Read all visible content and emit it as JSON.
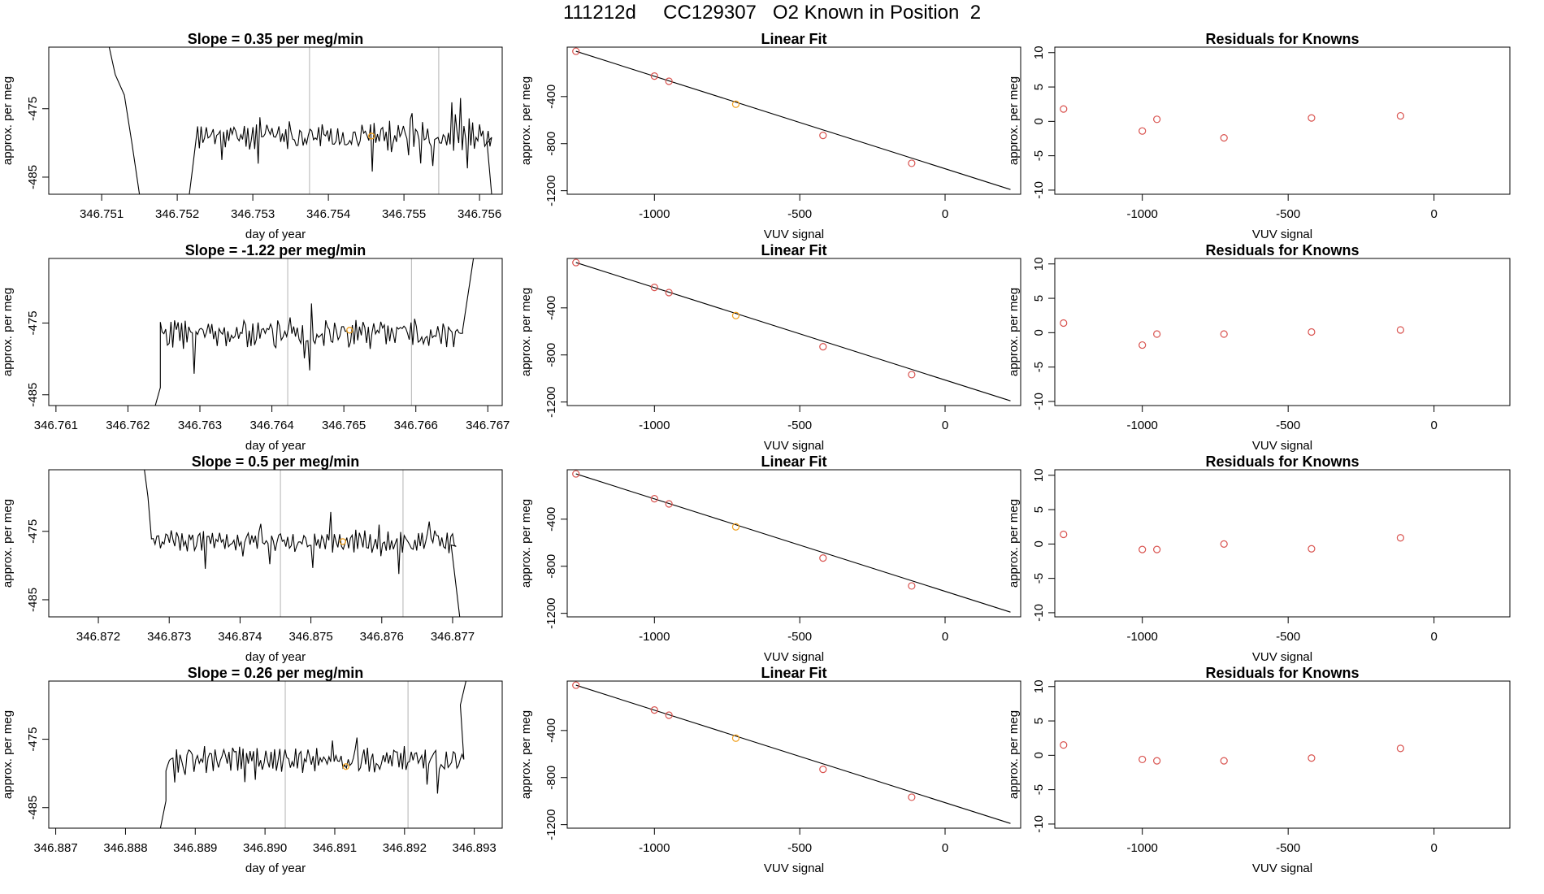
{
  "page_title": "111212d     CC129307   O2 Known in Position  2",
  "colors": {
    "trace": "#000000",
    "points": "#d9534f",
    "current_point": "#f0a020",
    "refline": "#c0c0c0",
    "fitline": "#000000"
  },
  "chart_data": [
    {
      "type": "line",
      "row": 1,
      "panel": "time-series",
      "title": "Slope =  0.35  per meg/min",
      "xlabel": "day of year",
      "ylabel": "approx. per meg",
      "xlim": [
        346.7503,
        346.7563
      ],
      "ylim": [
        -487.5,
        -466.0
      ],
      "xticks": [
        "346.751",
        "346.752",
        "346.753",
        "346.754",
        "346.755",
        "346.756"
      ],
      "xtick_values": [
        346.751,
        346.752,
        346.753,
        346.754,
        346.755,
        346.756
      ],
      "yticks": [
        "-475",
        "-485"
      ],
      "ytick_values": [
        -475,
        -485
      ],
      "ref_lines_x": [
        346.75375,
        346.75546
      ],
      "current_point": {
        "x": 346.75457,
        "y": -479.0
      },
      "series_x_start": 346.75227,
      "series_x_end": 346.75616,
      "seed": 11,
      "baseline": -479.0,
      "amplitude": 3.2,
      "edge_left": [
        [
          346.7511,
          -466.0
        ],
        [
          346.75118,
          -470.0
        ],
        [
          346.7513,
          -473.0
        ],
        [
          346.7514,
          -480.0
        ],
        [
          346.7515,
          -487.5
        ]
      ],
      "edge_rise": [
        [
          346.75216,
          -487.5
        ],
        [
          346.7522,
          -484.0
        ]
      ],
      "edge_end": [
        [
          346.7561,
          -480.0
        ],
        [
          346.75616,
          -487.5
        ]
      ]
    },
    {
      "type": "line",
      "row": 2,
      "panel": "time-series",
      "title": "Slope =  -1.22  per meg/min",
      "xlabel": "day of year",
      "ylabel": "approx. per meg",
      "xlim": [
        346.7609,
        346.7672
      ],
      "ylim": [
        -486.5,
        -466.0
      ],
      "xticks": [
        "346.761",
        "346.762",
        "346.763",
        "346.764",
        "346.765",
        "346.766",
        "346.767"
      ],
      "xtick_values": [
        346.761,
        346.762,
        346.763,
        346.764,
        346.765,
        346.766,
        346.767
      ],
      "yticks": [
        "-475",
        "-485"
      ],
      "ytick_values": [
        -475,
        -485
      ],
      "ref_lines_x": [
        346.76422,
        346.76594
      ],
      "current_point": {
        "x": 346.76508,
        "y": -476.0
      },
      "series_x_start": 346.76245,
      "series_x_end": 346.76665,
      "seed": 23,
      "baseline": -476.5,
      "amplitude": 3.4,
      "edge_left": [
        [
          346.76238,
          -486.5
        ],
        [
          346.76245,
          -484.0
        ]
      ],
      "edge_rise": [],
      "edge_end": [
        [
          346.76665,
          -476.0
        ],
        [
          346.7668,
          -466.0
        ]
      ]
    },
    {
      "type": "line",
      "row": 3,
      "panel": "time-series",
      "title": "Slope =  0.5  per meg/min",
      "xlabel": "day of year",
      "ylabel": "approx. per meg",
      "xlim": [
        346.8713,
        346.8777
      ],
      "ylim": [
        -487.5,
        -466.0
      ],
      "xticks": [
        "346.872",
        "346.873",
        "346.874",
        "346.875",
        "346.876",
        "346.877"
      ],
      "xtick_values": [
        346.872,
        346.873,
        346.874,
        346.875,
        346.876,
        346.877
      ],
      "yticks": [
        "-475",
        "-485"
      ],
      "ytick_values": [
        -475,
        -485
      ],
      "ref_lines_x": [
        346.87457,
        346.8763
      ],
      "current_point": {
        "x": 346.87545,
        "y": -476.5
      },
      "series_x_start": 346.87275,
      "series_x_end": 346.87705,
      "seed": 37,
      "baseline": -476.5,
      "amplitude": 2.6,
      "edge_left": [
        [
          346.87265,
          -466.0
        ],
        [
          346.8727,
          -470.0
        ]
      ],
      "edge_rise": [],
      "edge_end": [
        [
          346.87698,
          -477.0
        ],
        [
          346.8771,
          -487.5
        ]
      ]
    },
    {
      "type": "line",
      "row": 4,
      "panel": "time-series",
      "title": "Slope =  0.26  per meg/min",
      "xlabel": "day of year",
      "ylabel": "approx. per meg",
      "xlim": [
        346.8869,
        346.8934
      ],
      "ylim": [
        -488.0,
        -466.5
      ],
      "xticks": [
        "346.887",
        "346.888",
        "346.889",
        "346.890",
        "346.891",
        "346.892",
        "346.893"
      ],
      "xtick_values": [
        346.887,
        346.888,
        346.889,
        346.89,
        346.891,
        346.892,
        346.893
      ],
      "yticks": [
        "-475",
        "-485"
      ],
      "ytick_values": [
        -475,
        -485
      ],
      "ref_lines_x": [
        346.89029,
        346.89205
      ],
      "current_point": {
        "x": 346.89116,
        "y": -479.0
      },
      "series_x_start": 346.88858,
      "series_x_end": 346.89285,
      "seed": 53,
      "baseline": -478.0,
      "amplitude": 3.0,
      "edge_left": [
        [
          346.8885,
          -488.0
        ],
        [
          346.88858,
          -484.0
        ]
      ],
      "edge_rise": [],
      "edge_end": [
        [
          346.8928,
          -470.0
        ],
        [
          346.89288,
          -466.5
        ]
      ]
    },
    {
      "type": "scatter",
      "panel": "linear-fit",
      "rows": [
        1,
        2,
        3,
        4
      ],
      "title": "Linear Fit",
      "xlabel": "VUV signal",
      "ylabel": "approx. per meg",
      "xlim": [
        -1300,
        260
      ],
      "ylim": [
        -1230,
        20
      ],
      "xticks": [
        "-1000",
        "-500",
        "0"
      ],
      "xtick_values": [
        -1000,
        -500,
        0
      ],
      "yticks": [
        "-400",
        "-800",
        "-1200"
      ],
      "ytick_values": [
        -400,
        -800,
        -1200
      ],
      "points_x": [
        -1270,
        -1000,
        -950,
        -720,
        -420,
        -115
      ],
      "points_y": [
        -15,
        -226,
        -270,
        -465,
        -730,
        -967
      ],
      "current_index": 3,
      "fit_line": {
        "x": [
          -1270,
          225
        ],
        "y": [
          -15,
          -1190
        ]
      }
    },
    {
      "type": "scatter",
      "panel": "residuals",
      "rows": [
        1,
        2,
        3,
        4
      ],
      "title": "Residuals for Knowns",
      "xlabel": "VUV signal",
      "ylabel": "approx. per meg",
      "xlim": [
        -1300,
        260
      ],
      "ylim": [
        -10.6,
        10.8
      ],
      "xticks": [
        "-1000",
        "-500",
        "0"
      ],
      "xtick_values": [
        -1000,
        -500,
        0
      ],
      "yticks": [
        "10",
        "5",
        "0",
        "-5",
        "-10"
      ],
      "ytick_values": [
        10,
        5,
        0,
        -5,
        -10
      ],
      "x": [
        -1270,
        -1000,
        -950,
        -720,
        -420,
        -115
      ],
      "series": [
        {
          "values": [
            1.8,
            -1.4,
            0.3,
            -2.4,
            0.5,
            0.8
          ]
        },
        {
          "values": [
            1.4,
            -1.8,
            -0.2,
            -0.2,
            0.1,
            0.4
          ]
        },
        {
          "values": [
            1.4,
            -0.8,
            -0.8,
            0.0,
            -0.7,
            0.9
          ]
        },
        {
          "values": [
            1.5,
            -0.6,
            -0.8,
            -0.8,
            -0.4,
            1.0
          ]
        }
      ]
    }
  ]
}
